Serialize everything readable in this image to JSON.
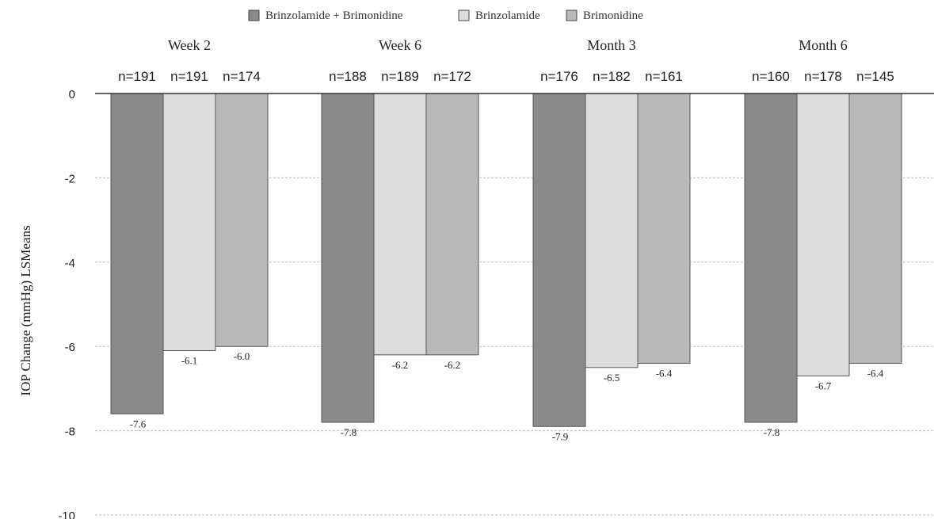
{
  "chart_data": {
    "type": "bar",
    "ylabel": "IOP Change (mmHg) LSMeans",
    "ylim": [
      -10,
      0
    ],
    "yticks": [
      "0",
      "-2",
      "-4",
      "-6",
      "-8",
      "-10"
    ],
    "grid": "horizontal dashed",
    "legend_position": "top-center",
    "categories": [
      "Week 2",
      "Week 6",
      "Month 3",
      "Month 6"
    ],
    "series": [
      {
        "name": "Brinzolamide + Brimonidine",
        "color": "#8a8a8a",
        "values": [
          -7.6,
          -7.8,
          -7.9,
          -7.8
        ],
        "value_labels": [
          "-7.6",
          "-7.8",
          "-7.9",
          "-7.8"
        ],
        "n_labels": [
          "n=191",
          "n=188",
          "n=176",
          "n=160"
        ]
      },
      {
        "name": "Brinzolamide",
        "color": "#dcdcdc",
        "values": [
          -6.1,
          -6.2,
          -6.5,
          -6.7
        ],
        "value_labels": [
          "-6.1",
          "-6.2",
          "-6.5",
          "-6.7"
        ],
        "n_labels": [
          "n=191",
          "n=189",
          "n=182",
          "n=178"
        ]
      },
      {
        "name": "Brimonidine",
        "color": "#b9b9b9",
        "values": [
          -6.0,
          -6.2,
          -6.4,
          -6.4
        ],
        "value_labels": [
          "-6.0",
          "-6.2",
          "-6.4",
          "-6.4"
        ],
        "n_labels": [
          "n=174",
          "n=172",
          "n=161",
          "n=145"
        ]
      }
    ]
  }
}
